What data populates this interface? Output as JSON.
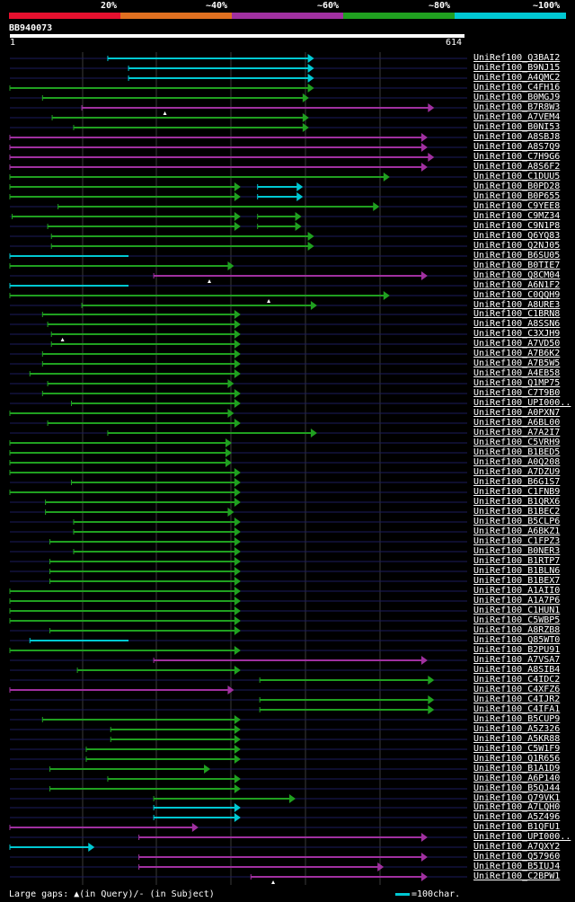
{
  "colors": {
    "red": "#e6102e",
    "orange": "#e07020",
    "purple": "#a030a0",
    "green": "#20a020",
    "cyan": "#00c8d2",
    "guide": "#1c1c5c",
    "grid": "#3a3a3a"
  },
  "legend": {
    "labels": [
      "20%",
      "~40%",
      "~60%",
      "~80%",
      "~100%"
    ],
    "colors": [
      "red",
      "orange",
      "purple",
      "green",
      "cyan"
    ]
  },
  "query": {
    "id": "BB940073",
    "start": "1",
    "end": "614",
    "length": 614
  },
  "hits": [
    {
      "name": "UniRef100_Q3BAI2",
      "color": "cyan",
      "start": 133,
      "end": 410,
      "arrow": true,
      "gaps": []
    },
    {
      "name": "UniRef100_B9NJ15",
      "color": "cyan",
      "start": 161,
      "end": 410,
      "arrow": true,
      "gaps": []
    },
    {
      "name": "UniRef100_A4QMC2",
      "color": "cyan",
      "start": 161,
      "end": 410,
      "arrow": true,
      "gaps": []
    },
    {
      "name": "UniRef100_C4FH16",
      "color": "green",
      "start": 1,
      "end": 410,
      "arrow": true,
      "gaps": []
    },
    {
      "name": "UniRef100_B0MGJ9",
      "color": "green",
      "start": 45,
      "end": 403,
      "arrow": true,
      "gaps": []
    },
    {
      "name": "UniRef100_B7R8W3",
      "color": "purple",
      "start": 98,
      "end": 572,
      "arrow": true,
      "gaps": [
        {
          "pos": 210,
          "mark": "query"
        }
      ]
    },
    {
      "name": "UniRef100_A7VEM4",
      "color": "green",
      "start": 58,
      "end": 403,
      "arrow": true,
      "gaps": []
    },
    {
      "name": "UniRef100_B0NI53",
      "color": "green",
      "start": 87,
      "end": 403,
      "arrow": true,
      "gaps": []
    },
    {
      "name": "UniRef100_A8SBJ8",
      "color": "purple",
      "start": 1,
      "end": 563,
      "arrow": true,
      "gaps": []
    },
    {
      "name": "UniRef100_A8S7Q9",
      "color": "purple",
      "start": 1,
      "end": 563,
      "arrow": true,
      "gaps": []
    },
    {
      "name": "UniRef100_C7H9G6",
      "color": "purple",
      "start": 1,
      "end": 572,
      "arrow": true,
      "gaps": []
    },
    {
      "name": "UniRef100_A8S6F2",
      "color": "purple",
      "start": 1,
      "end": 563,
      "arrow": true,
      "gaps": []
    },
    {
      "name": "UniRef100_C1DUU5",
      "color": "green",
      "start": 1,
      "end": 512,
      "arrow": true,
      "gaps": []
    },
    {
      "name": "UniRef100_B0PD28",
      "color": "green",
      "start": 1,
      "end": 311,
      "arrow": true,
      "gaps": [],
      "extra": {
        "start": 335,
        "end": 395,
        "color": "cyan"
      }
    },
    {
      "name": "UniRef100_B0P655",
      "color": "green",
      "start": 1,
      "end": 311,
      "arrow": true,
      "gaps": [],
      "extra": {
        "start": 335,
        "end": 395,
        "color": "cyan"
      }
    },
    {
      "name": "UniRef100_C9YEE8",
      "color": "green",
      "start": 66,
      "end": 498,
      "arrow": true,
      "gaps": []
    },
    {
      "name": "UniRef100_C9MZ34",
      "color": "green",
      "start": 4,
      "end": 311,
      "arrow": true,
      "gaps": [],
      "extra": {
        "start": 335,
        "end": 393,
        "color": "green"
      }
    },
    {
      "name": "UniRef100_C9N1P8",
      "color": "green",
      "start": 52,
      "end": 311,
      "arrow": true,
      "gaps": [],
      "extra": {
        "start": 335,
        "end": 393,
        "color": "green"
      }
    },
    {
      "name": "UniRef100_Q6YQ83",
      "color": "green",
      "start": 57,
      "end": 410,
      "arrow": true,
      "gaps": []
    },
    {
      "name": "UniRef100_Q2NJ05",
      "color": "green",
      "start": 57,
      "end": 410,
      "arrow": true,
      "gaps": []
    },
    {
      "name": "UniRef100_B6SU05",
      "color": "cyan",
      "start": 1,
      "end": 161,
      "arrow": false,
      "gaps": []
    },
    {
      "name": "UniRef100_B0TIE7",
      "color": "green",
      "start": 1,
      "end": 302,
      "arrow": true,
      "gaps": []
    },
    {
      "name": "UniRef100_Q8CM04",
      "color": "purple",
      "start": 195,
      "end": 563,
      "arrow": true,
      "gaps": [
        {
          "pos": 270,
          "mark": "query"
        }
      ]
    },
    {
      "name": "UniRef100_A6N1F2",
      "color": "cyan",
      "start": 1,
      "end": 161,
      "arrow": false,
      "gaps": []
    },
    {
      "name": "UniRef100_C0QQH9",
      "color": "green",
      "start": 1,
      "end": 512,
      "arrow": true,
      "gaps": [
        {
          "pos": 350,
          "mark": "query"
        }
      ]
    },
    {
      "name": "UniRef100_A8URE3",
      "color": "green",
      "start": 98,
      "end": 414,
      "arrow": true,
      "gaps": []
    },
    {
      "name": "UniRef100_C1BRN8",
      "color": "green",
      "start": 45,
      "end": 311,
      "arrow": true,
      "gaps": []
    },
    {
      "name": "UniRef100_A8SSN6",
      "color": "green",
      "start": 52,
      "end": 311,
      "arrow": true,
      "gaps": []
    },
    {
      "name": "UniRef100_C3XJH9",
      "color": "green",
      "start": 57,
      "end": 311,
      "arrow": true,
      "gaps": [
        {
          "pos": 72,
          "mark": "query"
        }
      ]
    },
    {
      "name": "UniRef100_A7VD50",
      "color": "green",
      "start": 57,
      "end": 311,
      "arrow": true,
      "gaps": []
    },
    {
      "name": "UniRef100_A7B6K2",
      "color": "green",
      "start": 45,
      "end": 311,
      "arrow": true,
      "gaps": []
    },
    {
      "name": "UniRef100_A7B5W5",
      "color": "green",
      "start": 45,
      "end": 311,
      "arrow": true,
      "gaps": []
    },
    {
      "name": "UniRef100_A4EB58",
      "color": "green",
      "start": 28,
      "end": 311,
      "arrow": true,
      "gaps": []
    },
    {
      "name": "UniRef100_Q1MP75",
      "color": "green",
      "start": 52,
      "end": 302,
      "arrow": true,
      "gaps": []
    },
    {
      "name": "UniRef100_C7T9B0",
      "color": "green",
      "start": 45,
      "end": 311,
      "arrow": true,
      "gaps": []
    },
    {
      "name": "UniRef100_UPI000..",
      "color": "green",
      "start": 84,
      "end": 311,
      "arrow": true,
      "gaps": []
    },
    {
      "name": "UniRef100_A0PXN7",
      "color": "green",
      "start": 1,
      "end": 302,
      "arrow": true,
      "gaps": []
    },
    {
      "name": "UniRef100_A6BL00",
      "color": "green",
      "start": 52,
      "end": 311,
      "arrow": true,
      "gaps": []
    },
    {
      "name": "UniRef100_A7A2I7",
      "color": "green",
      "start": 133,
      "end": 414,
      "arrow": true,
      "gaps": []
    },
    {
      "name": "UniRef100_C5VRH9",
      "color": "green",
      "start": 1,
      "end": 299,
      "arrow": true,
      "gaps": []
    },
    {
      "name": "UniRef100_B1BED5",
      "color": "green",
      "start": 1,
      "end": 299,
      "arrow": true,
      "gaps": []
    },
    {
      "name": "UniRef100_A0Q208",
      "color": "green",
      "start": 1,
      "end": 299,
      "arrow": true,
      "gaps": []
    },
    {
      "name": "UniRef100_A7DZU9",
      "color": "green",
      "start": 1,
      "end": 311,
      "arrow": true,
      "gaps": []
    },
    {
      "name": "UniRef100_B6G1S7",
      "color": "green",
      "start": 84,
      "end": 311,
      "arrow": true,
      "gaps": []
    },
    {
      "name": "UniRef100_C1FNB9",
      "color": "green",
      "start": 1,
      "end": 311,
      "arrow": true,
      "gaps": []
    },
    {
      "name": "UniRef100_B1QRX6",
      "color": "green",
      "start": 49,
      "end": 311,
      "arrow": true,
      "gaps": []
    },
    {
      "name": "UniRef100_B1BEC2",
      "color": "green",
      "start": 49,
      "end": 302,
      "arrow": true,
      "gaps": []
    },
    {
      "name": "UniRef100_B5CLP6",
      "color": "green",
      "start": 87,
      "end": 311,
      "arrow": true,
      "gaps": []
    },
    {
      "name": "UniRef100_A6BKZ1",
      "color": "green",
      "start": 87,
      "end": 311,
      "arrow": true,
      "gaps": []
    },
    {
      "name": "UniRef100_C1FPZ3",
      "color": "green",
      "start": 55,
      "end": 311,
      "arrow": true,
      "gaps": []
    },
    {
      "name": "UniRef100_B0NER3",
      "color": "green",
      "start": 87,
      "end": 311,
      "arrow": true,
      "gaps": []
    },
    {
      "name": "UniRef100_B1RTP7",
      "color": "green",
      "start": 55,
      "end": 311,
      "arrow": true,
      "gaps": []
    },
    {
      "name": "UniRef100_B1BLN6",
      "color": "green",
      "start": 55,
      "end": 311,
      "arrow": true,
      "gaps": []
    },
    {
      "name": "UniRef100_B1BEX7",
      "color": "green",
      "start": 55,
      "end": 311,
      "arrow": true,
      "gaps": []
    },
    {
      "name": "UniRef100_A1AII0",
      "color": "green",
      "start": 1,
      "end": 311,
      "arrow": true,
      "gaps": []
    },
    {
      "name": "UniRef100_A1A7P6",
      "color": "green",
      "start": 1,
      "end": 311,
      "arrow": true,
      "gaps": []
    },
    {
      "name": "UniRef100_C1HUN1",
      "color": "green",
      "start": 1,
      "end": 311,
      "arrow": true,
      "gaps": []
    },
    {
      "name": "UniRef100_C5WBP5",
      "color": "green",
      "start": 1,
      "end": 311,
      "arrow": true,
      "gaps": []
    },
    {
      "name": "UniRef100_A8RZB8",
      "color": "green",
      "start": 55,
      "end": 311,
      "arrow": true,
      "gaps": []
    },
    {
      "name": "UniRef100_Q85WT0",
      "color": "cyan",
      "start": 28,
      "end": 161,
      "arrow": false,
      "gaps": []
    },
    {
      "name": "UniRef100_B2PU91",
      "color": "green",
      "start": 1,
      "end": 311,
      "arrow": true,
      "gaps": []
    },
    {
      "name": "UniRef100_A7VSA7",
      "color": "purple",
      "start": 195,
      "end": 563,
      "arrow": true,
      "gaps": []
    },
    {
      "name": "UniRef100_A8SIB4",
      "color": "green",
      "start": 92,
      "end": 311,
      "arrow": true,
      "gaps": []
    },
    {
      "name": "UniRef100_C4IDC2",
      "color": "green",
      "start": 338,
      "end": 572,
      "arrow": true,
      "gaps": []
    },
    {
      "name": "UniRef100_C4XFZ6",
      "color": "purple",
      "start": 1,
      "end": 302,
      "arrow": true,
      "gaps": []
    },
    {
      "name": "UniRef100_C4IJR2",
      "color": "green",
      "start": 338,
      "end": 572,
      "arrow": true,
      "gaps": []
    },
    {
      "name": "UniRef100_C4IFA1",
      "color": "green",
      "start": 338,
      "end": 572,
      "arrow": true,
      "gaps": []
    },
    {
      "name": "UniRef100_B5CUP9",
      "color": "green",
      "start": 45,
      "end": 311,
      "arrow": true,
      "gaps": []
    },
    {
      "name": "UniRef100_A5Z326",
      "color": "green",
      "start": 137,
      "end": 311,
      "arrow": true,
      "gaps": []
    },
    {
      "name": "UniRef100_A5KR88",
      "color": "green",
      "start": 137,
      "end": 311,
      "arrow": true,
      "gaps": []
    },
    {
      "name": "UniRef100_C5W1F9",
      "color": "green",
      "start": 104,
      "end": 311,
      "arrow": true,
      "gaps": []
    },
    {
      "name": "UniRef100_Q1R656",
      "color": "green",
      "start": 104,
      "end": 311,
      "arrow": true,
      "gaps": []
    },
    {
      "name": "UniRef100_B1A1D9",
      "color": "green",
      "start": 55,
      "end": 270,
      "arrow": true,
      "gaps": []
    },
    {
      "name": "UniRef100_A6P140",
      "color": "green",
      "start": 133,
      "end": 311,
      "arrow": true,
      "gaps": []
    },
    {
      "name": "UniRef100_B5QJ44",
      "color": "green",
      "start": 55,
      "end": 311,
      "arrow": true,
      "gaps": []
    },
    {
      "name": "UniRef100_Q79VK1",
      "color": "green",
      "start": 195,
      "end": 385,
      "arrow": true,
      "gaps": []
    },
    {
      "name": "UniRef100_A7LQH0",
      "color": "cyan",
      "start": 195,
      "end": 311,
      "arrow": true,
      "gaps": []
    },
    {
      "name": "UniRef100_A5Z496",
      "color": "cyan",
      "start": 195,
      "end": 311,
      "arrow": true,
      "gaps": []
    },
    {
      "name": "UniRef100_B1QFU1",
      "color": "purple",
      "start": 1,
      "end": 254,
      "arrow": true,
      "gaps": []
    },
    {
      "name": "UniRef100_UPI000..",
      "color": "purple",
      "start": 175,
      "end": 563,
      "arrow": true,
      "gaps": []
    },
    {
      "name": "UniRef100_A7QXY2",
      "color": "cyan",
      "start": 1,
      "end": 114,
      "arrow": true,
      "gaps": []
    },
    {
      "name": "UniRef100_Q57960",
      "color": "purple",
      "start": 175,
      "end": 563,
      "arrow": true,
      "gaps": []
    },
    {
      "name": "UniRef100_B5IUJ4",
      "color": "purple",
      "start": 175,
      "end": 504,
      "arrow": true,
      "gaps": []
    },
    {
      "name": "UniRef100_C2BPW1",
      "color": "purple",
      "start": 326,
      "end": 563,
      "arrow": true,
      "gaps": [
        {
          "pos": 356,
          "mark": "query"
        }
      ]
    }
  ],
  "footer": {
    "text": "Large gaps: ▲(in Query)/- (in Subject)",
    "scale_label": "=100char."
  }
}
